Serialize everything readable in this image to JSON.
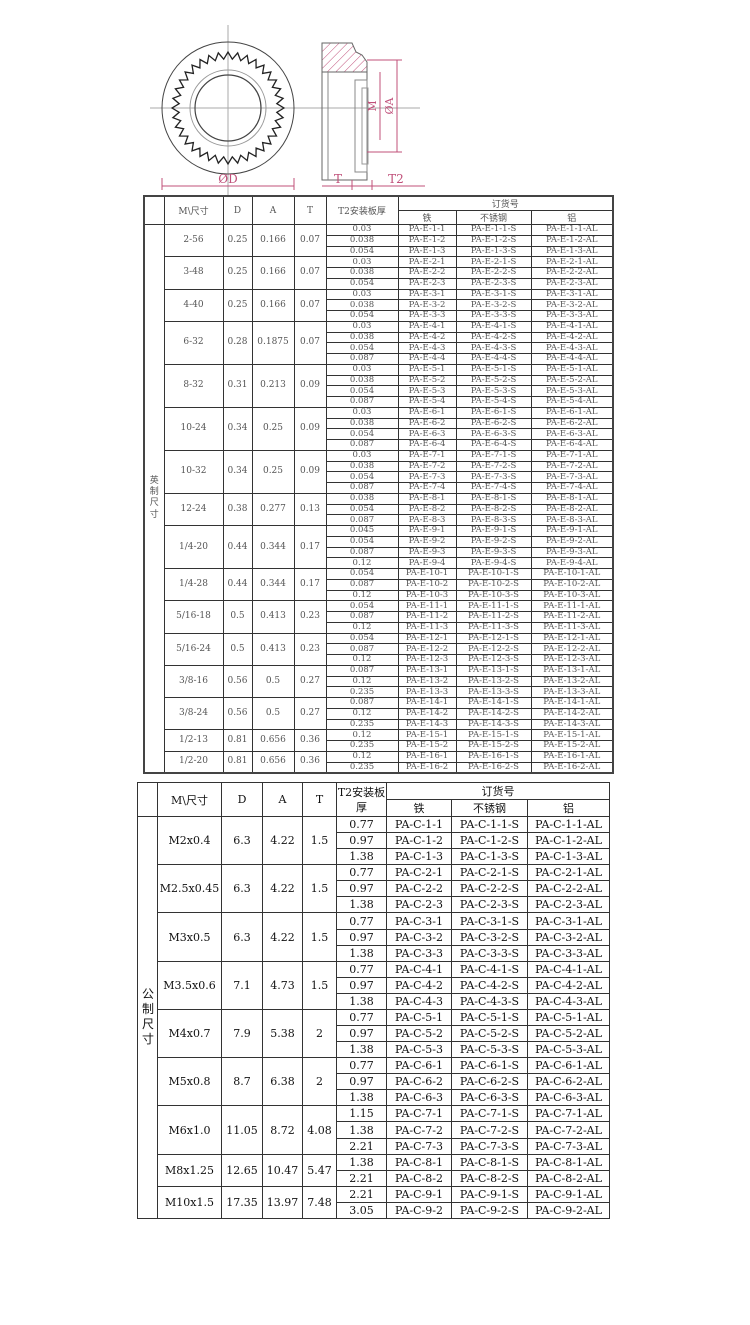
{
  "drawing": {
    "label_D": "ØD",
    "label_T": "T",
    "label_T2": "T2",
    "label_M": "M",
    "label_A": "ØA",
    "dimension_color": "#c0507a"
  },
  "imperial_table": {
    "headers": {
      "size": "M\\尺寸",
      "D": "D",
      "A": "A",
      "T": "T",
      "T2": "T2安装板厚",
      "order": "订货号",
      "iron": "铁",
      "stainless": "不锈钢",
      "aluminum": "铝"
    },
    "side_label": "英制尺寸",
    "groups": [
      {
        "size": "2-56",
        "D": "0.25",
        "A": "0.166",
        "T": "0.07",
        "rows": [
          [
            "0.03",
            "PA-E-1-1",
            "PA-E-1-1-S",
            "PA-E-1-1-AL"
          ],
          [
            "0.038",
            "PA-E-1-2",
            "PA-E-1-2-S",
            "PA-E-1-2-AL"
          ],
          [
            "0.054",
            "PA-E-1-3",
            "PA-E-1-3-S",
            "PA-E-1-3-AL"
          ]
        ]
      },
      {
        "size": "3-48",
        "D": "0.25",
        "A": "0.166",
        "T": "0.07",
        "rows": [
          [
            "0.03",
            "PA-E-2-1",
            "PA-E-2-1-S",
            "PA-E-2-1-AL"
          ],
          [
            "0.038",
            "PA-E-2-2",
            "PA-E-2-2-S",
            "PA-E-2-2-AL"
          ],
          [
            "0.054",
            "PA-E-2-3",
            "PA-E-2-3-S",
            "PA-E-2-3-AL"
          ]
        ]
      },
      {
        "size": "4-40",
        "D": "0.25",
        "A": "0.166",
        "T": "0.07",
        "rows": [
          [
            "0.03",
            "PA-E-3-1",
            "PA-E-3-1-S",
            "PA-E-3-1-AL"
          ],
          [
            "0.038",
            "PA-E-3-2",
            "PA-E-3-2-S",
            "PA-E-3-2-AL"
          ],
          [
            "0.054",
            "PA-E-3-3",
            "PA-E-3-3-S",
            "PA-E-3-3-AL"
          ]
        ]
      },
      {
        "size": "6-32",
        "D": "0.28",
        "A": "0.1875",
        "T": "0.07",
        "rows": [
          [
            "0.03",
            "PA-E-4-1",
            "PA-E-4-1-S",
            "PA-E-4-1-AL"
          ],
          [
            "0.038",
            "PA-E-4-2",
            "PA-E-4-2-S",
            "PA-E-4-2-AL"
          ],
          [
            "0.054",
            "PA-E-4-3",
            "PA-E-4-3-S",
            "PA-E-4-3-AL"
          ],
          [
            "0.087",
            "PA-E-4-4",
            "PA-E-4-4-S",
            "PA-E-4-4-AL"
          ]
        ]
      },
      {
        "size": "8-32",
        "D": "0.31",
        "A": "0.213",
        "T": "0.09",
        "rows": [
          [
            "0.03",
            "PA-E-5-1",
            "PA-E-5-1-S",
            "PA-E-5-1-AL"
          ],
          [
            "0.038",
            "PA-E-5-2",
            "PA-E-5-2-S",
            "PA-E-5-2-AL"
          ],
          [
            "0.054",
            "PA-E-5-3",
            "PA-E-5-3-S",
            "PA-E-5-3-AL"
          ],
          [
            "0.087",
            "PA-E-5-4",
            "PA-E-5-4-S",
            "PA-E-5-4-AL"
          ]
        ]
      },
      {
        "size": "10-24",
        "D": "0.34",
        "A": "0.25",
        "T": "0.09",
        "rows": [
          [
            "0.03",
            "PA-E-6-1",
            "PA-E-6-1-S",
            "PA-E-6-1-AL"
          ],
          [
            "0.038",
            "PA-E-6-2",
            "PA-E-6-2-S",
            "PA-E-6-2-AL"
          ],
          [
            "0.054",
            "PA-E-6-3",
            "PA-E-6-3-S",
            "PA-E-6-3-AL"
          ],
          [
            "0.087",
            "PA-E-6-4",
            "PA-E-6-4-S",
            "PA-E-6-4-AL"
          ]
        ]
      },
      {
        "size": "10-32",
        "D": "0.34",
        "A": "0.25",
        "T": "0.09",
        "rows": [
          [
            "0.03",
            "PA-E-7-1",
            "PA-E-7-1-S",
            "PA-E-7-1-AL"
          ],
          [
            "0.038",
            "PA-E-7-2",
            "PA-E-7-2-S",
            "PA-E-7-2-AL"
          ],
          [
            "0.054",
            "PA-E-7-3",
            "PA-E-7-3-S",
            "PA-E-7-3-AL"
          ],
          [
            "0.087",
            "PA-E-7-4",
            "PA-E-7-4-S",
            "PA-E-7-4-AL"
          ]
        ]
      },
      {
        "size": "12-24",
        "D": "0.38",
        "A": "0.277",
        "T": "0.13",
        "rows": [
          [
            "0.038",
            "PA-E-8-1",
            "PA-E-8-1-S",
            "PA-E-8-1-AL"
          ],
          [
            "0.054",
            "PA-E-8-2",
            "PA-E-8-2-S",
            "PA-E-8-2-AL"
          ],
          [
            "0.087",
            "PA-E-8-3",
            "PA-E-8-3-S",
            "PA-E-8-3-AL"
          ]
        ]
      },
      {
        "size": "1/4-20",
        "D": "0.44",
        "A": "0.344",
        "T": "0.17",
        "rows": [
          [
            "0.045",
            "PA-E-9-1",
            "PA-E-9-1-S",
            "PA-E-9-1-AL"
          ],
          [
            "0.054",
            "PA-E-9-2",
            "PA-E-9-2-S",
            "PA-E-9-2-AL"
          ],
          [
            "0.087",
            "PA-E-9-3",
            "PA-E-9-3-S",
            "PA-E-9-3-AL"
          ],
          [
            "0.12",
            "PA-E-9-4",
            "PA-E-9-4-S",
            "PA-E-9-4-AL"
          ]
        ]
      },
      {
        "size": "1/4-28",
        "D": "0.44",
        "A": "0.344",
        "T": "0.17",
        "rows": [
          [
            "0.054",
            "PA-E-10-1",
            "PA-E-10-1-S",
            "PA-E-10-1-AL"
          ],
          [
            "0.087",
            "PA-E-10-2",
            "PA-E-10-2-S",
            "PA-E-10-2-AL"
          ],
          [
            "0.12",
            "PA-E-10-3",
            "PA-E-10-3-S",
            "PA-E-10-3-AL"
          ]
        ]
      },
      {
        "size": "5/16-18",
        "D": "0.5",
        "A": "0.413",
        "T": "0.23",
        "rows": [
          [
            "0.054",
            "PA-E-11-1",
            "PA-E-11-1-S",
            "PA-E-11-1-AL"
          ],
          [
            "0.087",
            "PA-E-11-2",
            "PA-E-11-2-S",
            "PA-E-11-2-AL"
          ],
          [
            "0.12",
            "PA-E-11-3",
            "PA-E-11-3-S",
            "PA-E-11-3-AL"
          ]
        ]
      },
      {
        "size": "5/16-24",
        "D": "0.5",
        "A": "0.413",
        "T": "0.23",
        "rows": [
          [
            "0.054",
            "PA-E-12-1",
            "PA-E-12-1-S",
            "PA-E-12-1-AL"
          ],
          [
            "0.087",
            "PA-E-12-2",
            "PA-E-12-2-S",
            "PA-E-12-2-AL"
          ],
          [
            "0.12",
            "PA-E-12-3",
            "PA-E-12-3-S",
            "PA-E-12-3-AL"
          ]
        ]
      },
      {
        "size": "3/8-16",
        "D": "0.56",
        "A": "0.5",
        "T": "0.27",
        "rows": [
          [
            "0.087",
            "PA-E-13-1",
            "PA-E-13-1-S",
            "PA-E-13-1-AL"
          ],
          [
            "0.12",
            "PA-E-13-2",
            "PA-E-13-2-S",
            "PA-E-13-2-AL"
          ],
          [
            "0.235",
            "PA-E-13-3",
            "PA-E-13-3-S",
            "PA-E-13-3-AL"
          ]
        ]
      },
      {
        "size": "3/8-24",
        "D": "0.56",
        "A": "0.5",
        "T": "0.27",
        "rows": [
          [
            "0.087",
            "PA-E-14-1",
            "PA-E-14-1-S",
            "PA-E-14-1-AL"
          ],
          [
            "0.12",
            "PA-E-14-2",
            "PA-E-14-2-S",
            "PA-E-14-2-AL"
          ],
          [
            "0.235",
            "PA-E-14-3",
            "PA-E-14-3-S",
            "PA-E-14-3-AL"
          ]
        ]
      },
      {
        "size": "1/2-13",
        "D": "0.81",
        "A": "0.656",
        "T": "0.36",
        "rows": [
          [
            "0.12",
            "PA-E-15-1",
            "PA-E-15-1-S",
            "PA-E-15-1-AL"
          ],
          [
            "0.235",
            "PA-E-15-2",
            "PA-E-15-2-S",
            "PA-E-15-2-AL"
          ]
        ]
      },
      {
        "size": "1/2-20",
        "D": "0.81",
        "A": "0.656",
        "T": "0.36",
        "rows": [
          [
            "0.12",
            "PA-E-16-1",
            "PA-E-16-1-S",
            "PA-E-16-1-AL"
          ],
          [
            "0.235",
            "PA-E-16-2",
            "PA-E-16-2-S",
            "PA-E-16-2-AL"
          ]
        ]
      }
    ]
  },
  "metric_table": {
    "headers": {
      "size": "M\\尺寸",
      "D": "D",
      "A": "A",
      "T": "T",
      "T2": "T2安装板厚",
      "order": "订货号",
      "iron": "铁",
      "stainless": "不锈钢",
      "aluminum": "铝"
    },
    "side_label": "公制尺寸",
    "groups": [
      {
        "size": "M2x0.4",
        "D": "6.3",
        "A": "4.22",
        "T": "1.5",
        "rows": [
          [
            "0.77",
            "PA-C-1-1",
            "PA-C-1-1-S",
            "PA-C-1-1-AL"
          ],
          [
            "0.97",
            "PA-C-1-2",
            "PA-C-1-2-S",
            "PA-C-1-2-AL"
          ],
          [
            "1.38",
            "PA-C-1-3",
            "PA-C-1-3-S",
            "PA-C-1-3-AL"
          ]
        ]
      },
      {
        "size": "M2.5x0.45",
        "D": "6.3",
        "A": "4.22",
        "T": "1.5",
        "rows": [
          [
            "0.77",
            "PA-C-2-1",
            "PA-C-2-1-S",
            "PA-C-2-1-AL"
          ],
          [
            "0.97",
            "PA-C-2-2",
            "PA-C-2-2-S",
            "PA-C-2-2-AL"
          ],
          [
            "1.38",
            "PA-C-2-3",
            "PA-C-2-3-S",
            "PA-C-2-3-AL"
          ]
        ]
      },
      {
        "size": "M3x0.5",
        "D": "6.3",
        "A": "4.22",
        "T": "1.5",
        "rows": [
          [
            "0.77",
            "PA-C-3-1",
            "PA-C-3-1-S",
            "PA-C-3-1-AL"
          ],
          [
            "0.97",
            "PA-C-3-2",
            "PA-C-3-2-S",
            "PA-C-3-2-AL"
          ],
          [
            "1.38",
            "PA-C-3-3",
            "PA-C-3-3-S",
            "PA-C-3-3-AL"
          ]
        ]
      },
      {
        "size": "M3.5x0.6",
        "D": "7.1",
        "A": "4.73",
        "T": "1.5",
        "rows": [
          [
            "0.77",
            "PA-C-4-1",
            "PA-C-4-1-S",
            "PA-C-4-1-AL"
          ],
          [
            "0.97",
            "PA-C-4-2",
            "PA-C-4-2-S",
            "PA-C-4-2-AL"
          ],
          [
            "1.38",
            "PA-C-4-3",
            "PA-C-4-3-S",
            "PA-C-4-3-AL"
          ]
        ]
      },
      {
        "size": "M4x0.7",
        "D": "7.9",
        "A": "5.38",
        "T": "2",
        "rows": [
          [
            "0.77",
            "PA-C-5-1",
            "PA-C-5-1-S",
            "PA-C-5-1-AL"
          ],
          [
            "0.97",
            "PA-C-5-2",
            "PA-C-5-2-S",
            "PA-C-5-2-AL"
          ],
          [
            "1.38",
            "PA-C-5-3",
            "PA-C-5-3-S",
            "PA-C-5-3-AL"
          ]
        ]
      },
      {
        "size": "M5x0.8",
        "D": "8.7",
        "A": "6.38",
        "T": "2",
        "rows": [
          [
            "0.77",
            "PA-C-6-1",
            "PA-C-6-1-S",
            "PA-C-6-1-AL"
          ],
          [
            "0.97",
            "PA-C-6-2",
            "PA-C-6-2-S",
            "PA-C-6-2-AL"
          ],
          [
            "1.38",
            "PA-C-6-3",
            "PA-C-6-3-S",
            "PA-C-6-3-AL"
          ]
        ]
      },
      {
        "size": "M6x1.0",
        "D": "11.05",
        "A": "8.72",
        "T": "4.08",
        "rows": [
          [
            "1.15",
            "PA-C-7-1",
            "PA-C-7-1-S",
            "PA-C-7-1-AL"
          ],
          [
            "1.38",
            "PA-C-7-2",
            "PA-C-7-2-S",
            "PA-C-7-2-AL"
          ],
          [
            "2.21",
            "PA-C-7-3",
            "PA-C-7-3-S",
            "PA-C-7-3-AL"
          ]
        ]
      },
      {
        "size": "M8x1.25",
        "D": "12.65",
        "A": "10.47",
        "T": "5.47",
        "rows": [
          [
            "1.38",
            "PA-C-8-1",
            "PA-C-8-1-S",
            "PA-C-8-1-AL"
          ],
          [
            "2.21",
            "PA-C-8-2",
            "PA-C-8-2-S",
            "PA-C-8-2-AL"
          ]
        ]
      },
      {
        "size": "M10x1.5",
        "D": "17.35",
        "A": "13.97",
        "T": "7.48",
        "rows": [
          [
            "2.21",
            "PA-C-9-1",
            "PA-C-9-1-S",
            "PA-C-9-1-AL"
          ],
          [
            "3.05",
            "PA-C-9-2",
            "PA-C-9-2-S",
            "PA-C-9-2-AL"
          ]
        ]
      }
    ]
  }
}
